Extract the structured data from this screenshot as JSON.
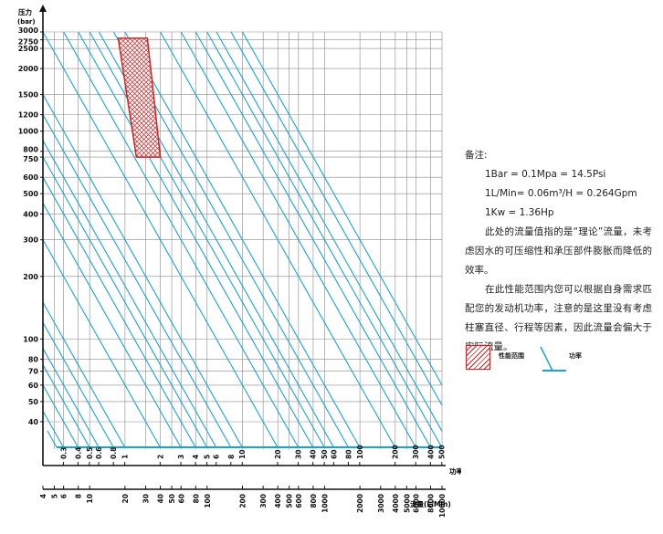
{
  "chart_data": {
    "type": "line",
    "ylabel": "压力",
    "yunit": "(bar)",
    "xlabel_power": "功率(Kw)",
    "xlabel_flow": "流量(L/Min)",
    "y_scale": "log",
    "ylim": [
      30,
      3000
    ],
    "yticks": [
      40,
      50,
      60,
      70,
      80,
      100,
      200,
      300,
      400,
      500,
      600,
      750,
      800,
      1000,
      1200,
      1500,
      2000,
      2500,
      2750,
      3000
    ],
    "flow_scale": "log",
    "flow_lim": [
      4,
      10000
    ],
    "flow_ticks": [
      4,
      5,
      6,
      8,
      10,
      20,
      30,
      40,
      50,
      60,
      80,
      100,
      200,
      300,
      400,
      500,
      600,
      800,
      1000,
      2000,
      3000,
      4000,
      5000,
      6000,
      8000,
      10000
    ],
    "power_ticks": [
      0.3,
      0.4,
      0.5,
      0.6,
      0.8,
      1,
      2,
      3,
      4,
      5,
      6,
      8,
      10,
      20,
      30,
      40,
      50,
      60,
      80,
      100,
      200,
      300,
      400,
      500,
      600,
      800,
      1000
    ],
    "power_lines_kw": [
      0.3,
      0.4,
      0.5,
      0.6,
      0.8,
      1,
      2,
      3,
      4,
      5,
      6,
      8,
      10,
      20,
      30,
      40,
      50,
      60,
      80,
      100,
      200,
      300,
      400,
      500,
      600,
      800,
      1000
    ],
    "performance_range": {
      "pressure": [
        750,
        2800
      ],
      "flow": [
        [
          17.5,
          25
        ],
        [
          31,
          40
        ]
      ]
    },
    "colors": {
      "lines": "#1aa3d6",
      "grid": "#8a8a8a",
      "axis": "#111111",
      "range": "#d42020"
    }
  },
  "notes": {
    "title": "备注:",
    "eq1": "1Bar = 0.1Mpa = 14.5Psi",
    "eq2": "1L/Min= 0.06m³/H = 0.264Gpm",
    "eq3": "1Kw = 1.36Hp",
    "p1": "此处的流量值指的是“理论”流量，未考虑因水的可压缩性和承压部件膨胀而降低的效率。",
    "p2": "在此性能范围内您可以根据自身需求匹配您的发动机功率，注意的是这里没有考虑柱塞直径、行程等因素，因此流量会偏大于实际流量。"
  },
  "legend": {
    "range_label": "性能范围",
    "power_label": "功率"
  }
}
